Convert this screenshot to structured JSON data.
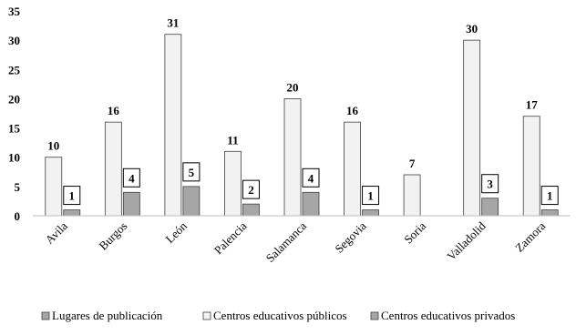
{
  "chart_data": {
    "type": "bar",
    "categories": [
      "Avila",
      "Burgos",
      "León",
      "Palencia",
      "Salamanca",
      "Segovia",
      "Soria",
      "Valladolid",
      "Zamora"
    ],
    "series": [
      {
        "name": "Lugares de publicación",
        "values": [
          null,
          null,
          null,
          null,
          null,
          null,
          null,
          null,
          null
        ],
        "color": "#a6a6a6"
      },
      {
        "name": "Centros educativos públicos",
        "values": [
          10,
          16,
          31,
          11,
          20,
          16,
          7,
          30,
          17
        ],
        "color": "#f2f2f2"
      },
      {
        "name": "Centros educativos privados",
        "values": [
          1,
          4,
          5,
          2,
          4,
          1,
          null,
          3,
          1
        ],
        "color": "#a6a6a6"
      }
    ],
    "ylim": [
      0,
      35
    ],
    "yticks": [
      0,
      5,
      10,
      15,
      20,
      25,
      30,
      35
    ],
    "grid": false,
    "legend_position": "bottom"
  }
}
